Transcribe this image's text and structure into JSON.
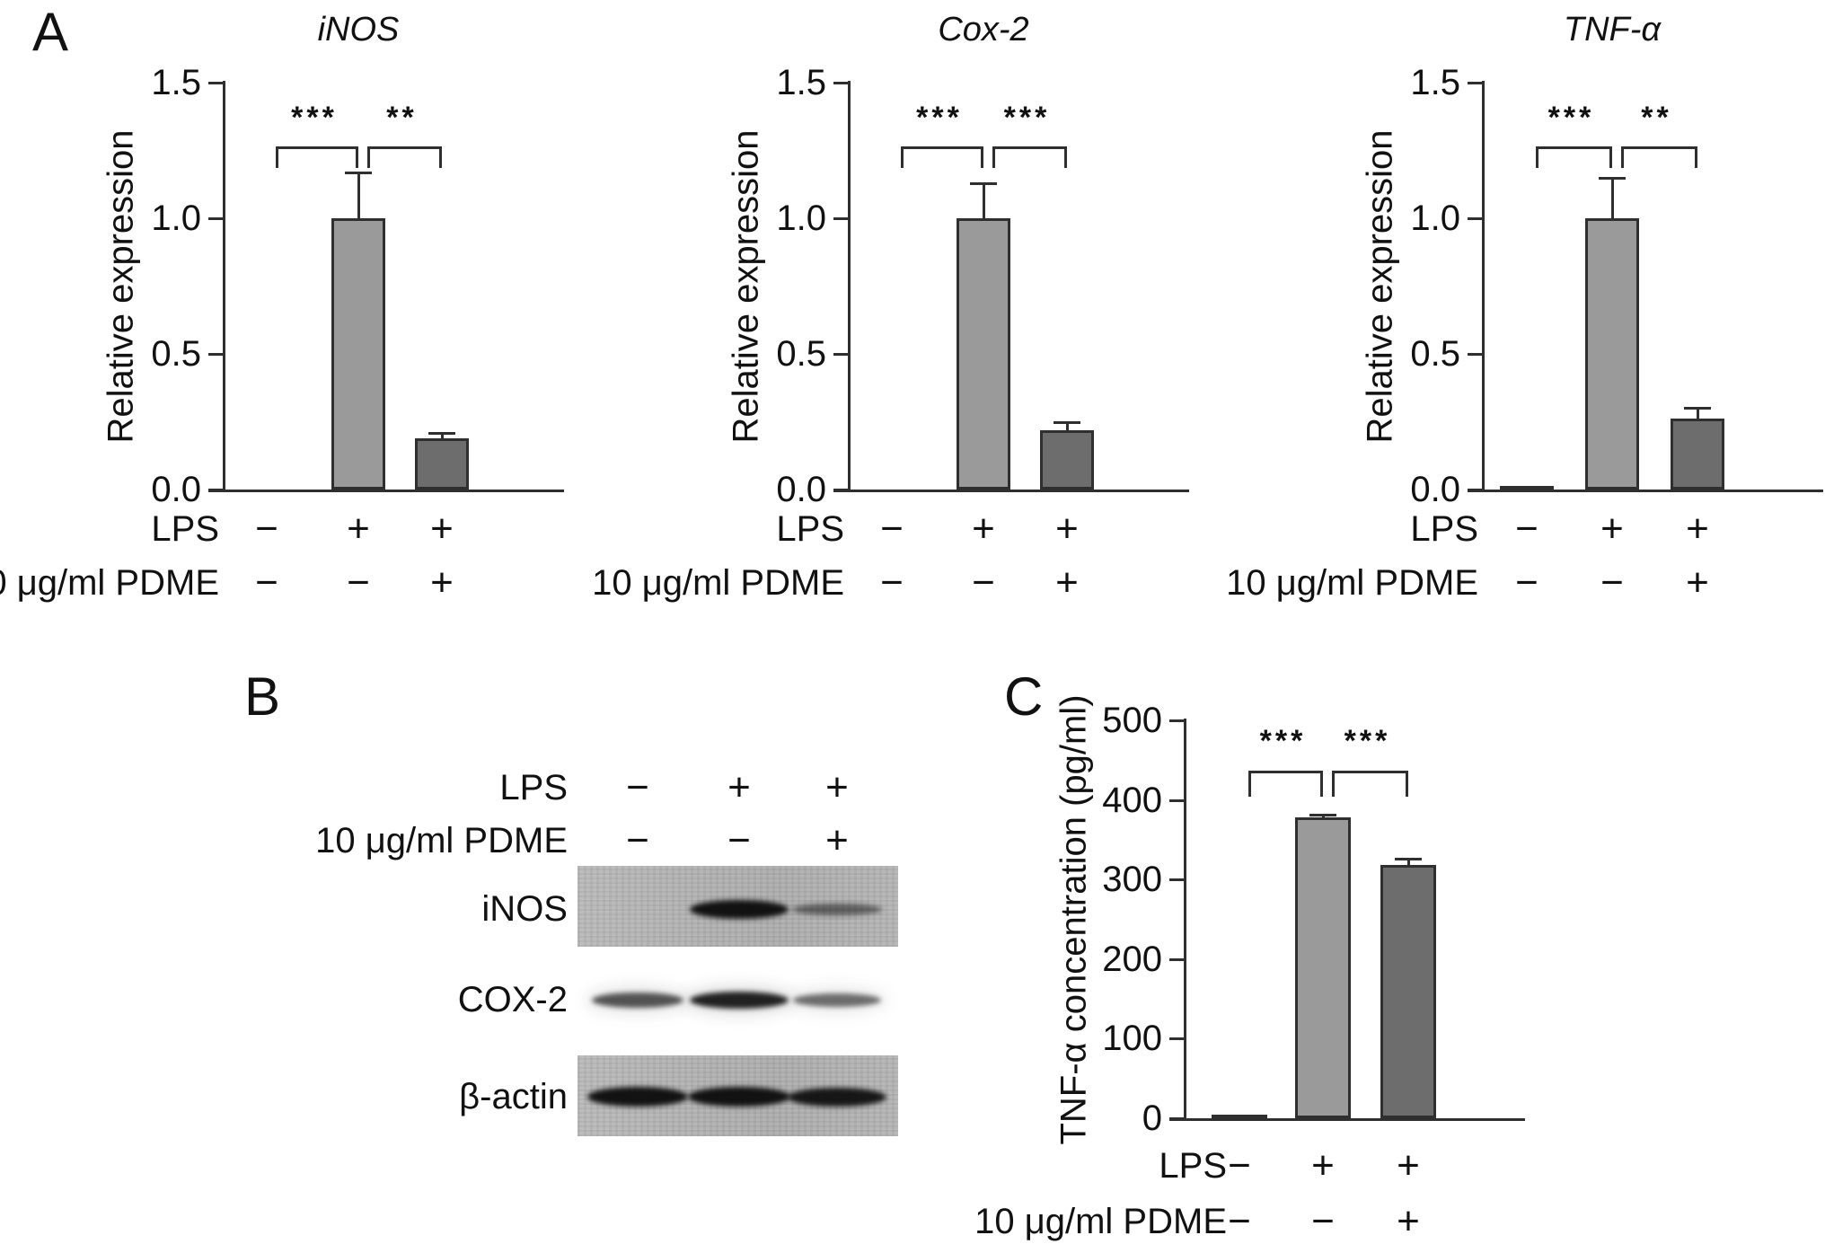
{
  "panel_labels": {
    "a": "A",
    "b": "B",
    "c": "C"
  },
  "colors": {
    "control_bar": "#2a2a2a",
    "lps_bar": "#9a9a9a",
    "pdme_bar": "#6d6d6d",
    "axis": "#2f2f2f",
    "text": "#1a1a1a",
    "membrane_background": "#b3b3b3"
  },
  "condition_rows": [
    {
      "label": "LPS",
      "symbols": [
        "−",
        "+",
        "+"
      ]
    },
    {
      "label": "10 μg/ml PDME",
      "symbols": [
        "−",
        "−",
        "+"
      ]
    }
  ],
  "chart_data": [
    {
      "id": "inos-mrna",
      "type": "bar",
      "title": "iNOS",
      "ylabel": "Relative expression",
      "ylim": [
        0,
        1.5
      ],
      "ytick_values": [
        0,
        0.5,
        1.0,
        1.5
      ],
      "yticks": [
        "0.0",
        "0.5",
        "1.0",
        "1.5"
      ],
      "categories": [
        "LPS −, PDME −",
        "LPS +, PDME −",
        "LPS +, PDME +"
      ],
      "values": [
        0,
        1.0,
        0.19
      ],
      "errors": [
        0,
        0.17,
        0.02
      ],
      "bar_colors": [
        "#2a2a2a",
        "#9a9a9a",
        "#6d6d6d"
      ],
      "significance": [
        {
          "pair": [
            0,
            1
          ],
          "label": "***"
        },
        {
          "pair": [
            1,
            2
          ],
          "label": "**"
        }
      ],
      "grid": false,
      "legend": "none"
    },
    {
      "id": "cox2-mrna",
      "type": "bar",
      "title": "Cox-2",
      "ylabel": "Relative expression",
      "ylim": [
        0,
        1.5
      ],
      "ytick_values": [
        0,
        0.5,
        1.0,
        1.5
      ],
      "yticks": [
        "0.0",
        "0.5",
        "1.0",
        "1.5"
      ],
      "categories": [
        "LPS −, PDME −",
        "LPS +, PDME −",
        "LPS +, PDME +"
      ],
      "values": [
        0,
        1.0,
        0.22
      ],
      "errors": [
        0,
        0.13,
        0.03
      ],
      "bar_colors": [
        "#2a2a2a",
        "#9a9a9a",
        "#6d6d6d"
      ],
      "significance": [
        {
          "pair": [
            0,
            1
          ],
          "label": "***"
        },
        {
          "pair": [
            1,
            2
          ],
          "label": "***"
        }
      ],
      "grid": false,
      "legend": "none"
    },
    {
      "id": "tnfa-mrna",
      "type": "bar",
      "title": "TNF-α",
      "ylabel": "Relative expression",
      "ylim": [
        0,
        1.5
      ],
      "ytick_values": [
        0,
        0.5,
        1.0,
        1.5
      ],
      "yticks": [
        "0.0",
        "0.5",
        "1.0",
        "1.5"
      ],
      "categories": [
        "LPS −, PDME −",
        "LPS +, PDME −",
        "LPS +, PDME +"
      ],
      "values": [
        0.01,
        1.0,
        0.26
      ],
      "errors": [
        0,
        0.15,
        0.04
      ],
      "bar_colors": [
        "#2a2a2a",
        "#9a9a9a",
        "#6d6d6d"
      ],
      "significance": [
        {
          "pair": [
            0,
            1
          ],
          "label": "***"
        },
        {
          "pair": [
            1,
            2
          ],
          "label": "**"
        }
      ],
      "grid": false,
      "legend": "none"
    },
    {
      "id": "tnfa-concentration",
      "type": "bar",
      "title": "",
      "ylabel": "TNF-α concentration (pg/ml)",
      "ylim": [
        0,
        500
      ],
      "ytick_values": [
        0,
        100,
        200,
        300,
        400,
        500
      ],
      "yticks": [
        "0",
        "100",
        "200",
        "300",
        "400",
        "500"
      ],
      "categories": [
        "LPS −, PDME −",
        "LPS +, PDME −",
        "LPS +, PDME +"
      ],
      "values": [
        2,
        378,
        318
      ],
      "errors": [
        0,
        4,
        8
      ],
      "bar_colors": [
        "#2a2a2a",
        "#9a9a9a",
        "#6d6d6d"
      ],
      "significance": [
        {
          "pair": [
            0,
            1
          ],
          "label": "***"
        },
        {
          "pair": [
            1,
            2
          ],
          "label": "***"
        }
      ],
      "grid": false,
      "legend": "none"
    }
  ],
  "blot": {
    "rows": [
      {
        "label": "iNOS",
        "background": "membrane",
        "band_intensities": [
          0,
          0.95,
          0.5
        ]
      },
      {
        "label": "COX-2",
        "background": "white",
        "band_intensities": [
          0.7,
          0.9,
          0.6
        ]
      },
      {
        "label": "β-actin",
        "background": "membrane",
        "band_intensities": [
          0.95,
          0.95,
          0.92
        ]
      }
    ]
  }
}
